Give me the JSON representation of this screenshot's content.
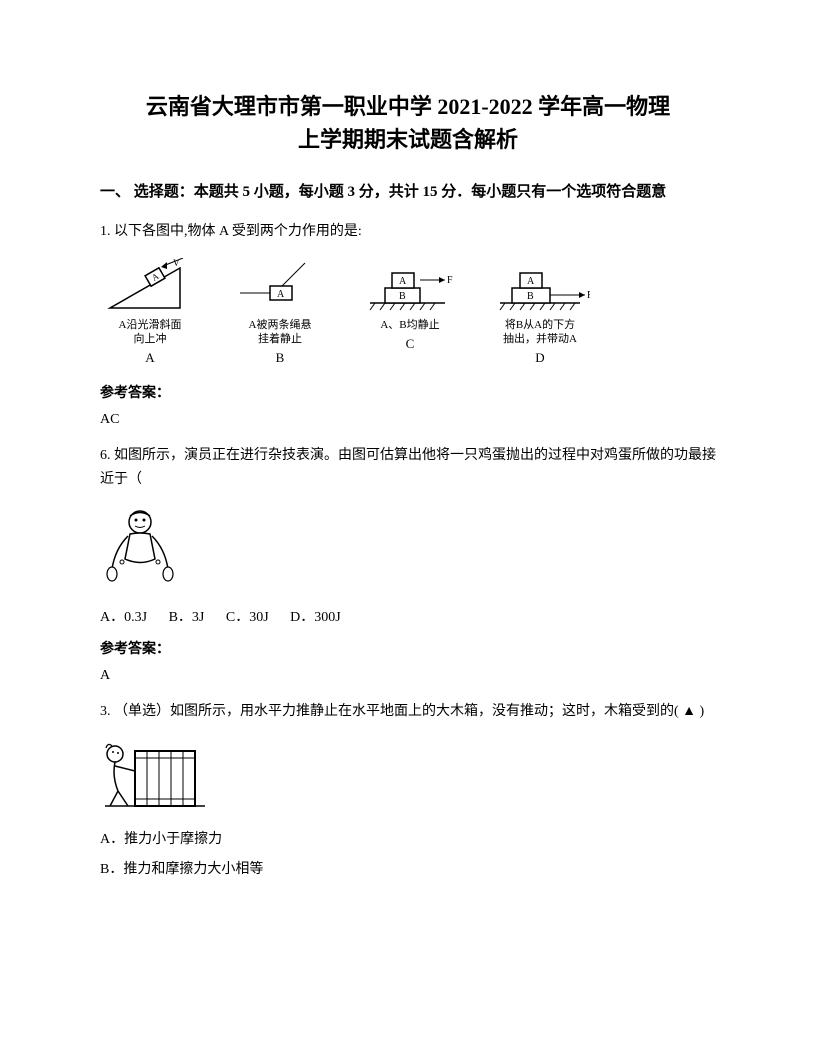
{
  "title_line1": "云南省大理市市第一职业中学 2021-2022 学年高一物理",
  "title_line2": "上学期期末试题含解析",
  "section1": "一、 选择题：本题共 5 小题，每小题 3 分，共计 15 分．每小题只有一个选项符合题意",
  "q1": {
    "text": "1. 以下各图中,物体 A 受到两个力作用的是:",
    "diagrams": [
      {
        "caption": "A沿光滑斜面\n向上冲",
        "label": "A"
      },
      {
        "caption": "A被两条绳悬\n挂着静止",
        "label": "B"
      },
      {
        "caption": "A、B均静止",
        "label": "C"
      },
      {
        "caption": "将B从A的下方\n抽出，并带动A",
        "label": "D"
      }
    ],
    "answer_label": "参考答案：",
    "answer": "AC"
  },
  "q6": {
    "text": "6. 如图所示，演员正在进行杂技表演。由图可估算出他将一只鸡蛋抛出的过程中对鸡蛋所做的功最接近于（",
    "options": {
      "A": "A．0.3J",
      "B": "B．3J",
      "C": "C．30J",
      "D": "D．300J"
    },
    "answer_label": "参考答案：",
    "answer": "A"
  },
  "q3": {
    "text": "3. （单选）如图所示，用水平力推静止在水平地面上的大木箱，没有推动；这时，木箱受到的( ▲ )",
    "options": {
      "A": "A．推力小于摩擦力",
      "B": "B．推力和摩擦力大小相等"
    }
  },
  "colors": {
    "text": "#000000",
    "bg": "#ffffff",
    "stroke": "#000000"
  }
}
